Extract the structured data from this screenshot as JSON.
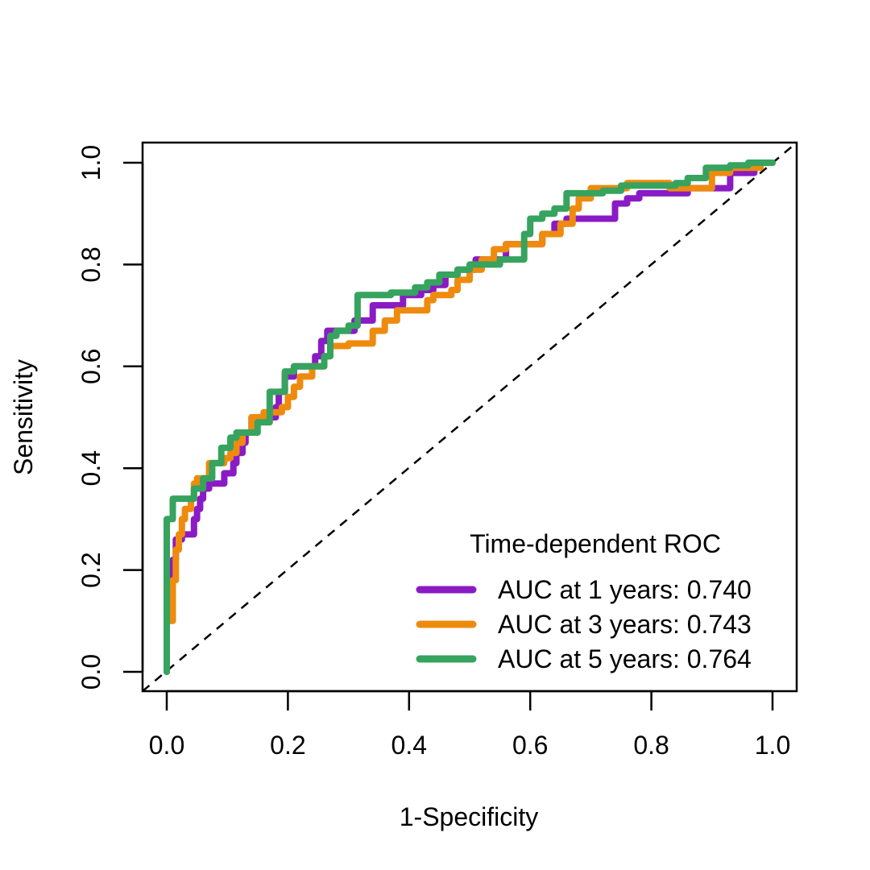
{
  "chart_data": {
    "type": "line",
    "title": "",
    "xlabel": "1-Specificity",
    "ylabel": "Sensitivity",
    "xlim": [
      0,
      1
    ],
    "ylim": [
      0,
      1
    ],
    "x_ticks": [
      "0.0",
      "0.2",
      "0.4",
      "0.6",
      "0.8",
      "1.0"
    ],
    "y_ticks": [
      "0.0",
      "0.2",
      "0.4",
      "0.6",
      "0.8",
      "1.0"
    ],
    "grid": false,
    "reference_line": {
      "from": [
        0,
        0
      ],
      "to": [
        1,
        1
      ],
      "style": "dashed"
    },
    "legend": {
      "title": "Time-dependent ROC",
      "position": "bottom-right"
    },
    "series": [
      {
        "name": "AUC at 1 years: 0.740",
        "color": "#8A1BC4",
        "points": [
          [
            0,
            0
          ],
          [
            0,
            0.1
          ],
          [
            0.005,
            0.1
          ],
          [
            0.005,
            0.15
          ],
          [
            0.01,
            0.15
          ],
          [
            0.01,
            0.22
          ],
          [
            0.015,
            0.22
          ],
          [
            0.015,
            0.26
          ],
          [
            0.025,
            0.26
          ],
          [
            0.025,
            0.27
          ],
          [
            0.045,
            0.27
          ],
          [
            0.045,
            0.3
          ],
          [
            0.05,
            0.3
          ],
          [
            0.05,
            0.32
          ],
          [
            0.055,
            0.32
          ],
          [
            0.055,
            0.34
          ],
          [
            0.06,
            0.34
          ],
          [
            0.06,
            0.36
          ],
          [
            0.07,
            0.36
          ],
          [
            0.07,
            0.37
          ],
          [
            0.095,
            0.37
          ],
          [
            0.095,
            0.39
          ],
          [
            0.11,
            0.39
          ],
          [
            0.11,
            0.41
          ],
          [
            0.115,
            0.41
          ],
          [
            0.115,
            0.43
          ],
          [
            0.125,
            0.43
          ],
          [
            0.125,
            0.45
          ],
          [
            0.13,
            0.45
          ],
          [
            0.13,
            0.47
          ],
          [
            0.14,
            0.47
          ],
          [
            0.14,
            0.5
          ],
          [
            0.18,
            0.5
          ],
          [
            0.18,
            0.52
          ],
          [
            0.185,
            0.52
          ],
          [
            0.185,
            0.55
          ],
          [
            0.195,
            0.55
          ],
          [
            0.195,
            0.58
          ],
          [
            0.21,
            0.58
          ],
          [
            0.21,
            0.6
          ],
          [
            0.245,
            0.6
          ],
          [
            0.245,
            0.62
          ],
          [
            0.255,
            0.62
          ],
          [
            0.255,
            0.65
          ],
          [
            0.265,
            0.65
          ],
          [
            0.265,
            0.67
          ],
          [
            0.31,
            0.67
          ],
          [
            0.31,
            0.69
          ],
          [
            0.34,
            0.69
          ],
          [
            0.34,
            0.72
          ],
          [
            0.39,
            0.72
          ],
          [
            0.39,
            0.74
          ],
          [
            0.42,
            0.74
          ],
          [
            0.42,
            0.75
          ],
          [
            0.44,
            0.75
          ],
          [
            0.44,
            0.76
          ],
          [
            0.46,
            0.76
          ],
          [
            0.46,
            0.78
          ],
          [
            0.48,
            0.78
          ],
          [
            0.48,
            0.79
          ],
          [
            0.51,
            0.79
          ],
          [
            0.51,
            0.81
          ],
          [
            0.56,
            0.81
          ],
          [
            0.56,
            0.84
          ],
          [
            0.62,
            0.84
          ],
          [
            0.62,
            0.86
          ],
          [
            0.64,
            0.86
          ],
          [
            0.64,
            0.88
          ],
          [
            0.66,
            0.88
          ],
          [
            0.66,
            0.89
          ],
          [
            0.74,
            0.89
          ],
          [
            0.74,
            0.92
          ],
          [
            0.76,
            0.92
          ],
          [
            0.76,
            0.93
          ],
          [
            0.78,
            0.93
          ],
          [
            0.78,
            0.94
          ],
          [
            0.86,
            0.94
          ],
          [
            0.86,
            0.95
          ],
          [
            0.93,
            0.95
          ],
          [
            0.93,
            0.98
          ],
          [
            0.97,
            0.98
          ],
          [
            0.97,
            1
          ],
          [
            1,
            1
          ]
        ]
      },
      {
        "name": "AUC at 3 years: 0.743",
        "color": "#EE8B0E",
        "points": [
          [
            0,
            0
          ],
          [
            0,
            0.1
          ],
          [
            0.01,
            0.1
          ],
          [
            0.01,
            0.18
          ],
          [
            0.015,
            0.18
          ],
          [
            0.015,
            0.24
          ],
          [
            0.02,
            0.24
          ],
          [
            0.02,
            0.27
          ],
          [
            0.025,
            0.27
          ],
          [
            0.025,
            0.3
          ],
          [
            0.03,
            0.3
          ],
          [
            0.03,
            0.32
          ],
          [
            0.04,
            0.32
          ],
          [
            0.04,
            0.34
          ],
          [
            0.045,
            0.34
          ],
          [
            0.045,
            0.37
          ],
          [
            0.05,
            0.37
          ],
          [
            0.05,
            0.38
          ],
          [
            0.07,
            0.38
          ],
          [
            0.07,
            0.41
          ],
          [
            0.095,
            0.41
          ],
          [
            0.095,
            0.42
          ],
          [
            0.105,
            0.42
          ],
          [
            0.105,
            0.43
          ],
          [
            0.115,
            0.43
          ],
          [
            0.115,
            0.45
          ],
          [
            0.125,
            0.45
          ],
          [
            0.125,
            0.47
          ],
          [
            0.14,
            0.47
          ],
          [
            0.14,
            0.5
          ],
          [
            0.16,
            0.5
          ],
          [
            0.16,
            0.51
          ],
          [
            0.19,
            0.51
          ],
          [
            0.19,
            0.52
          ],
          [
            0.2,
            0.52
          ],
          [
            0.2,
            0.54
          ],
          [
            0.21,
            0.54
          ],
          [
            0.21,
            0.56
          ],
          [
            0.22,
            0.56
          ],
          [
            0.22,
            0.58
          ],
          [
            0.24,
            0.58
          ],
          [
            0.24,
            0.6
          ],
          [
            0.26,
            0.6
          ],
          [
            0.26,
            0.62
          ],
          [
            0.27,
            0.62
          ],
          [
            0.27,
            0.64
          ],
          [
            0.3,
            0.64
          ],
          [
            0.3,
            0.645
          ],
          [
            0.34,
            0.645
          ],
          [
            0.34,
            0.67
          ],
          [
            0.36,
            0.67
          ],
          [
            0.36,
            0.69
          ],
          [
            0.38,
            0.69
          ],
          [
            0.38,
            0.71
          ],
          [
            0.43,
            0.71
          ],
          [
            0.43,
            0.73
          ],
          [
            0.44,
            0.73
          ],
          [
            0.44,
            0.74
          ],
          [
            0.47,
            0.74
          ],
          [
            0.47,
            0.75
          ],
          [
            0.48,
            0.75
          ],
          [
            0.48,
            0.77
          ],
          [
            0.5,
            0.77
          ],
          [
            0.5,
            0.79
          ],
          [
            0.52,
            0.79
          ],
          [
            0.52,
            0.81
          ],
          [
            0.54,
            0.81
          ],
          [
            0.54,
            0.83
          ],
          [
            0.56,
            0.83
          ],
          [
            0.56,
            0.84
          ],
          [
            0.62,
            0.84
          ],
          [
            0.62,
            0.86
          ],
          [
            0.65,
            0.86
          ],
          [
            0.65,
            0.88
          ],
          [
            0.67,
            0.88
          ],
          [
            0.67,
            0.91
          ],
          [
            0.68,
            0.91
          ],
          [
            0.68,
            0.93
          ],
          [
            0.7,
            0.93
          ],
          [
            0.7,
            0.95
          ],
          [
            0.76,
            0.95
          ],
          [
            0.76,
            0.96
          ],
          [
            0.83,
            0.96
          ],
          [
            0.83,
            0.95
          ],
          [
            0.9,
            0.95
          ],
          [
            0.9,
            0.98
          ],
          [
            0.93,
            0.98
          ],
          [
            0.93,
            0.99
          ],
          [
            0.98,
            0.99
          ],
          [
            0.98,
            1
          ],
          [
            1,
            1
          ]
        ]
      },
      {
        "name": "AUC at 5 years: 0.764",
        "color": "#36A35E",
        "points": [
          [
            0,
            0
          ],
          [
            0,
            0.3
          ],
          [
            0.01,
            0.3
          ],
          [
            0.01,
            0.34
          ],
          [
            0.045,
            0.34
          ],
          [
            0.045,
            0.36
          ],
          [
            0.06,
            0.36
          ],
          [
            0.06,
            0.38
          ],
          [
            0.075,
            0.38
          ],
          [
            0.075,
            0.41
          ],
          [
            0.09,
            0.41
          ],
          [
            0.09,
            0.44
          ],
          [
            0.105,
            0.44
          ],
          [
            0.105,
            0.46
          ],
          [
            0.115,
            0.46
          ],
          [
            0.115,
            0.47
          ],
          [
            0.15,
            0.47
          ],
          [
            0.15,
            0.49
          ],
          [
            0.17,
            0.49
          ],
          [
            0.17,
            0.55
          ],
          [
            0.195,
            0.55
          ],
          [
            0.195,
            0.59
          ],
          [
            0.21,
            0.59
          ],
          [
            0.21,
            0.6
          ],
          [
            0.26,
            0.6
          ],
          [
            0.26,
            0.62
          ],
          [
            0.27,
            0.62
          ],
          [
            0.27,
            0.66
          ],
          [
            0.28,
            0.66
          ],
          [
            0.28,
            0.67
          ],
          [
            0.3,
            0.67
          ],
          [
            0.3,
            0.68
          ],
          [
            0.315,
            0.68
          ],
          [
            0.315,
            0.74
          ],
          [
            0.37,
            0.74
          ],
          [
            0.37,
            0.745
          ],
          [
            0.41,
            0.745
          ],
          [
            0.41,
            0.755
          ],
          [
            0.43,
            0.755
          ],
          [
            0.43,
            0.765
          ],
          [
            0.45,
            0.765
          ],
          [
            0.45,
            0.78
          ],
          [
            0.48,
            0.78
          ],
          [
            0.48,
            0.79
          ],
          [
            0.5,
            0.79
          ],
          [
            0.5,
            0.8
          ],
          [
            0.55,
            0.8
          ],
          [
            0.55,
            0.81
          ],
          [
            0.59,
            0.81
          ],
          [
            0.59,
            0.86
          ],
          [
            0.6,
            0.86
          ],
          [
            0.6,
            0.89
          ],
          [
            0.62,
            0.89
          ],
          [
            0.62,
            0.9
          ],
          [
            0.64,
            0.9
          ],
          [
            0.64,
            0.91
          ],
          [
            0.66,
            0.91
          ],
          [
            0.66,
            0.94
          ],
          [
            0.72,
            0.94
          ],
          [
            0.72,
            0.945
          ],
          [
            0.75,
            0.945
          ],
          [
            0.75,
            0.955
          ],
          [
            0.84,
            0.955
          ],
          [
            0.84,
            0.96
          ],
          [
            0.86,
            0.96
          ],
          [
            0.86,
            0.97
          ],
          [
            0.89,
            0.97
          ],
          [
            0.89,
            0.99
          ],
          [
            0.93,
            0.99
          ],
          [
            0.93,
            0.995
          ],
          [
            0.96,
            0.995
          ],
          [
            0.96,
            1
          ],
          [
            1,
            1
          ]
        ]
      }
    ]
  }
}
